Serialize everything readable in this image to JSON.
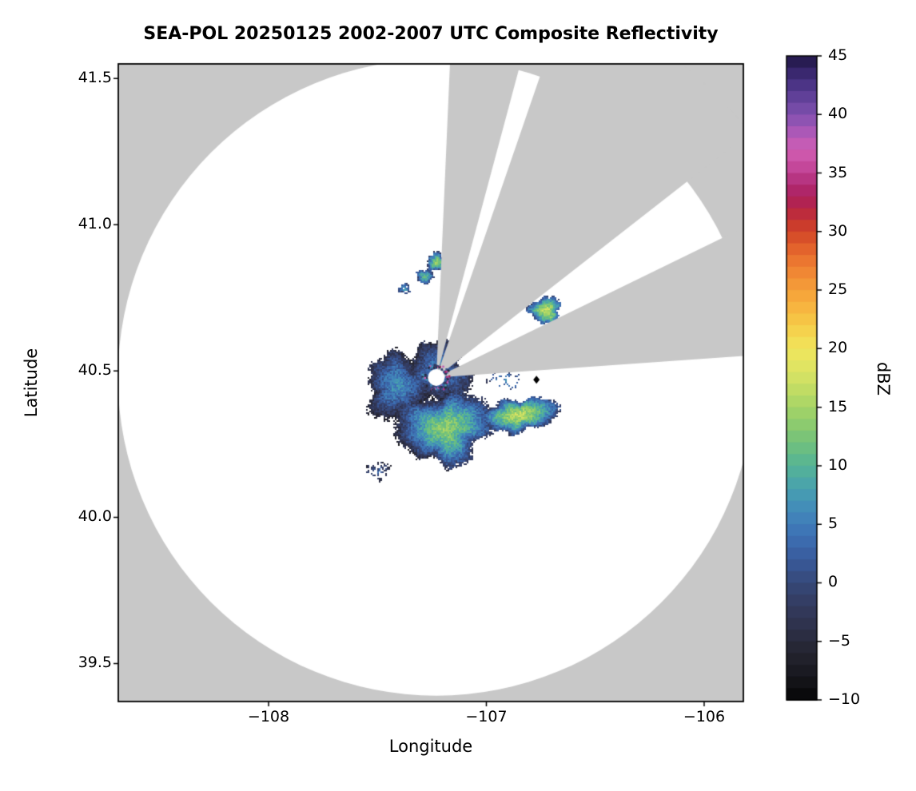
{
  "chart_data": {
    "type": "heatmap",
    "title": "SEA-POL 20250125 2002-2007 UTC Composite Reflectivity",
    "xlabel": "Longitude",
    "ylabel": "Latitude",
    "colorbar_label": "dBZ",
    "xlim": [
      -108.69,
      -105.82
    ],
    "ylim": [
      39.37,
      41.55
    ],
    "xtick_values": [
      -108,
      -107,
      -106
    ],
    "xtick_labels": [
      "−108",
      "−107",
      "−106"
    ],
    "ytick_values": [
      39.5,
      40.0,
      40.5,
      41.0,
      41.5
    ],
    "ytick_labels": [
      "39.5",
      "40.0",
      "40.5",
      "41.0",
      "41.5"
    ],
    "grid": false,
    "legend": "none",
    "noise_seed": 42,
    "colorbar": {
      "min": -10,
      "max": 45,
      "tick_values": [
        -10,
        -5,
        0,
        5,
        10,
        15,
        20,
        25,
        30,
        35,
        40,
        45
      ],
      "tick_labels": [
        "−10",
        "−5",
        "0",
        "5",
        "10",
        "15",
        "20",
        "25",
        "30",
        "35",
        "40",
        "45"
      ],
      "stops": [
        [
          -10,
          "#060606"
        ],
        [
          -8,
          "#17171d"
        ],
        [
          -6,
          "#24242f"
        ],
        [
          -4,
          "#2d3048"
        ],
        [
          -2,
          "#333a5e"
        ],
        [
          0,
          "#364878"
        ],
        [
          2,
          "#395a9c"
        ],
        [
          4,
          "#3d70b4"
        ],
        [
          6,
          "#4288ba"
        ],
        [
          8,
          "#47a0b0"
        ],
        [
          10,
          "#55b495"
        ],
        [
          12,
          "#72c17b"
        ],
        [
          14,
          "#94ce6b"
        ],
        [
          16,
          "#b8da64"
        ],
        [
          18,
          "#dae364"
        ],
        [
          20,
          "#f0e55c"
        ],
        [
          22,
          "#f6cb48"
        ],
        [
          24,
          "#f7ae3d"
        ],
        [
          26,
          "#f29036"
        ],
        [
          28,
          "#e96d2e"
        ],
        [
          30,
          "#d14527"
        ],
        [
          31,
          "#c43331"
        ],
        [
          32,
          "#b52546"
        ],
        [
          33,
          "#ac205d"
        ],
        [
          34,
          "#b12b75"
        ],
        [
          35,
          "#bd3e8e"
        ],
        [
          36,
          "#ca50a5"
        ],
        [
          37,
          "#cf5db1"
        ],
        [
          38,
          "#b95ab8"
        ],
        [
          39,
          "#9c55b5"
        ],
        [
          40,
          "#8050ae"
        ],
        [
          41,
          "#6a46a0"
        ],
        [
          42,
          "#553a90"
        ],
        [
          43,
          "#422e7c"
        ],
        [
          44,
          "#312261"
        ],
        [
          45,
          "#1f1543"
        ]
      ]
    },
    "radar": {
      "center_lon": -107.23,
      "center_lat": 40.478,
      "range_deg_lat": 1.088,
      "hole_radius_px": 10.5,
      "blocked_sectors_deg": [
        [
          2.5,
          15
        ],
        [
          19,
          52
        ],
        [
          64,
          86
        ]
      ],
      "outside_color": "#c8c8c8",
      "coverage_color": "#ffffff"
    },
    "marker": {
      "lon": -106.77,
      "lat": 40.47,
      "color": "#000000",
      "shape": "diamond"
    },
    "echo_regions": [
      {
        "name": "west-lobe",
        "lon": -107.41,
        "lat": 40.45,
        "rx_lon": 0.15,
        "ry_lat": 0.115,
        "rot": 0,
        "peak_dbz": 10,
        "density": 1.0
      },
      {
        "name": "south-core",
        "lon": -107.2,
        "lat": 40.31,
        "rx_lon": 0.235,
        "ry_lat": 0.125,
        "rot": -5,
        "peak_dbz": 16,
        "density": 1.0
      },
      {
        "name": "radar-vicinity",
        "lon": -107.23,
        "lat": 40.5,
        "rx_lon": 0.155,
        "ry_lat": 0.105,
        "rot": 0,
        "peak_dbz": 8,
        "density": 1.0
      },
      {
        "name": "east-tail",
        "lon": -106.86,
        "lat": 40.35,
        "rx_lon": 0.195,
        "ry_lat": 0.058,
        "rot": -8,
        "peak_dbz": 15,
        "density": 1.0
      },
      {
        "name": "northeast-patch",
        "lon": -106.73,
        "lat": 40.71,
        "rx_lon": 0.075,
        "ry_lat": 0.05,
        "rot": 0,
        "peak_dbz": 14,
        "density": 1.0
      },
      {
        "name": "north-patch-1",
        "lon": -107.23,
        "lat": 40.875,
        "rx_lon": 0.05,
        "ry_lat": 0.032,
        "rot": 0,
        "peak_dbz": 12,
        "density": 1.0
      },
      {
        "name": "north-patch-2",
        "lon": -107.285,
        "lat": 40.825,
        "rx_lon": 0.04,
        "ry_lat": 0.026,
        "rot": 0,
        "peak_dbz": 9,
        "density": 1.0
      },
      {
        "name": "north-speck",
        "lon": -107.38,
        "lat": 40.785,
        "rx_lon": 0.028,
        "ry_lat": 0.018,
        "rot": 0,
        "peak_dbz": 5,
        "density": 0.8
      },
      {
        "name": "east-specks",
        "lon": -106.93,
        "lat": 40.47,
        "rx_lon": 0.085,
        "ry_lat": 0.04,
        "rot": 0,
        "peak_dbz": 4,
        "density": 0.25
      },
      {
        "name": "south-specks",
        "lon": -107.5,
        "lat": 40.16,
        "rx_lon": 0.055,
        "ry_lat": 0.035,
        "rot": 0,
        "peak_dbz": 4,
        "density": 0.4
      }
    ]
  }
}
